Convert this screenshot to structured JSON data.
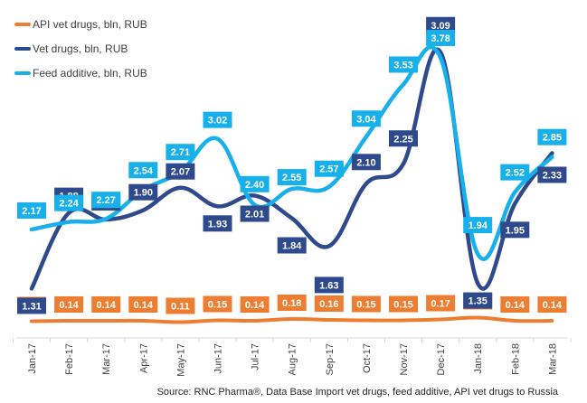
{
  "chart_data": {
    "type": "line",
    "title": "",
    "xlabel": "",
    "ylabel": "",
    "categories": [
      "Jan-17",
      "Feb-17",
      "Mar-17",
      "Apr-17",
      "May-17",
      "Jun-17",
      "Jul-17",
      "Aug-17",
      "Sep-17",
      "Oct-17",
      "Nov-17",
      "Dec-17",
      "Jan-18",
      "Feb-18",
      "Mar-18"
    ],
    "series": [
      {
        "name": "API vet drugs, bln, RUB",
        "color": "#ED7D31",
        "values": [
          0.13,
          0.14,
          0.14,
          0.14,
          0.11,
          0.15,
          0.14,
          0.18,
          0.16,
          0.15,
          0.15,
          0.17,
          0.21,
          0.14,
          0.14
        ]
      },
      {
        "name": "Vet drugs, bln, RUB",
        "color": "#2F4A8C",
        "values": [
          1.31,
          1.88,
          1.83,
          1.9,
          2.07,
          1.93,
          2.01,
          1.84,
          1.63,
          2.1,
          2.25,
          3.09,
          1.35,
          1.95,
          2.33
        ]
      },
      {
        "name": "Feed additive, bln, RUB",
        "color": "#17B0EA",
        "values": [
          2.17,
          2.24,
          2.27,
          2.54,
          2.71,
          3.02,
          2.4,
          2.55,
          2.57,
          3.04,
          3.53,
          3.78,
          1.94,
          2.52,
          2.85
        ]
      }
    ],
    "legend_position": "top-left",
    "grid": false,
    "source": "Source: RNC Pharma®, Data Base Import vet drugs, feed additive, API vet drugs to Russia"
  }
}
